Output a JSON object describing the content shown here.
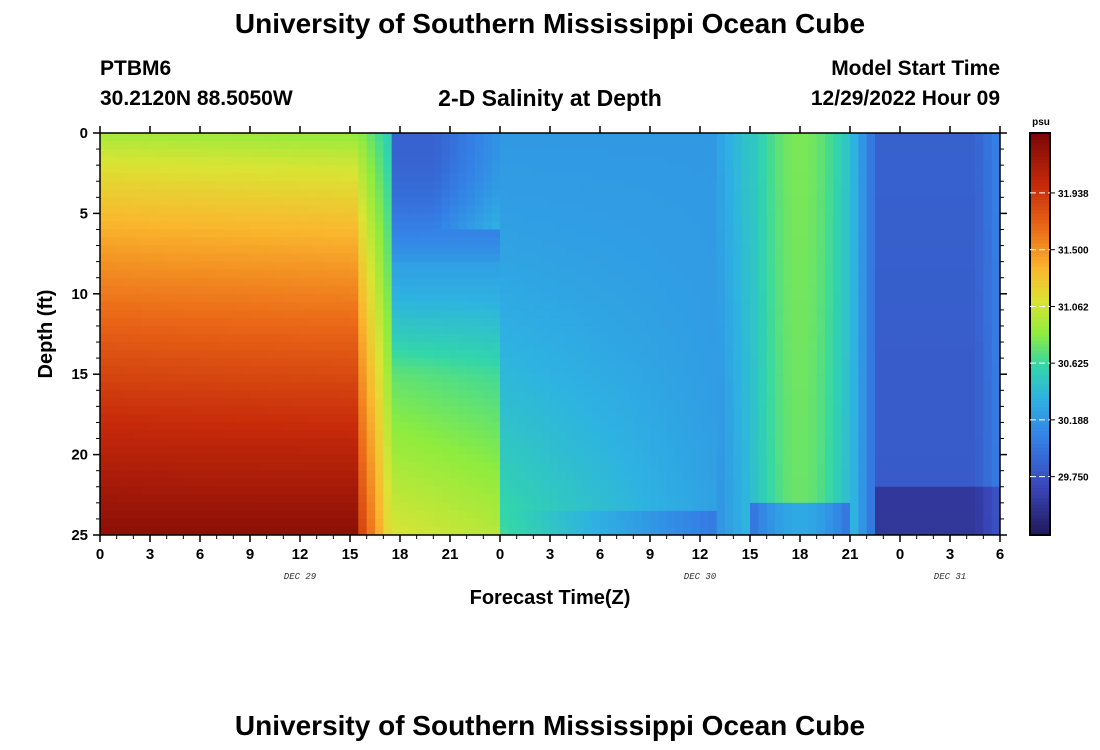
{
  "page": {
    "title": "University of Southern Mississippi Ocean Cube",
    "station": "PTBM6",
    "coords": "30.2120N  88.5050W",
    "subtitle": "2-D Salinity at Depth",
    "model_label": "Model Start Time",
    "model_time": "12/29/2022 Hour 09",
    "footer_title": "University of Southern Mississippi Ocean Cube"
  },
  "chart_data": {
    "type": "heatmap",
    "title": "2-D Salinity at Depth",
    "xlabel": "Forecast Time(Z)",
    "ylabel": "Depth (ft)",
    "x_ticks": [
      "0",
      "3",
      "6",
      "9",
      "12",
      "15",
      "18",
      "21",
      "0",
      "3",
      "6",
      "9",
      "12",
      "15",
      "18",
      "21",
      "0",
      "3",
      "6"
    ],
    "x_range_hours": [
      0,
      54
    ],
    "day_labels": [
      {
        "label": "DEC 29",
        "hour": 12
      },
      {
        "label": "DEC 30",
        "hour": 36
      },
      {
        "label": "DEC 31",
        "hour": 51
      }
    ],
    "y_ticks": [
      "0",
      "5",
      "10",
      "15",
      "20",
      "25"
    ],
    "ylim": [
      0,
      25
    ],
    "y_inverted": true,
    "colorbar": {
      "unit": "psu",
      "min": 29.3,
      "max": 32.4,
      "ticks": [
        "31.938",
        "31.500",
        "31.062",
        "30.625",
        "30.188",
        "29.750"
      ]
    },
    "value_unit": "psu",
    "field_description_by_time": [
      {
        "hour_start": 0,
        "hour_end": 16,
        "value_surface": 30.9,
        "value_bottom": 32.3
      },
      {
        "hour_start": 16,
        "hour_end": 23,
        "value_surface": 29.85,
        "value_bottom": 31.1
      },
      {
        "hour_start": 23,
        "hour_end": 38,
        "value_surface": 30.2,
        "value_bottom": 30.5
      },
      {
        "hour_start": 38,
        "hour_end": 46,
        "value_surface": 30.55,
        "value_bottom": 30.3
      },
      {
        "hour_start": 46,
        "hour_end": 54,
        "value_surface": 29.85,
        "value_bottom": 29.55
      }
    ]
  }
}
